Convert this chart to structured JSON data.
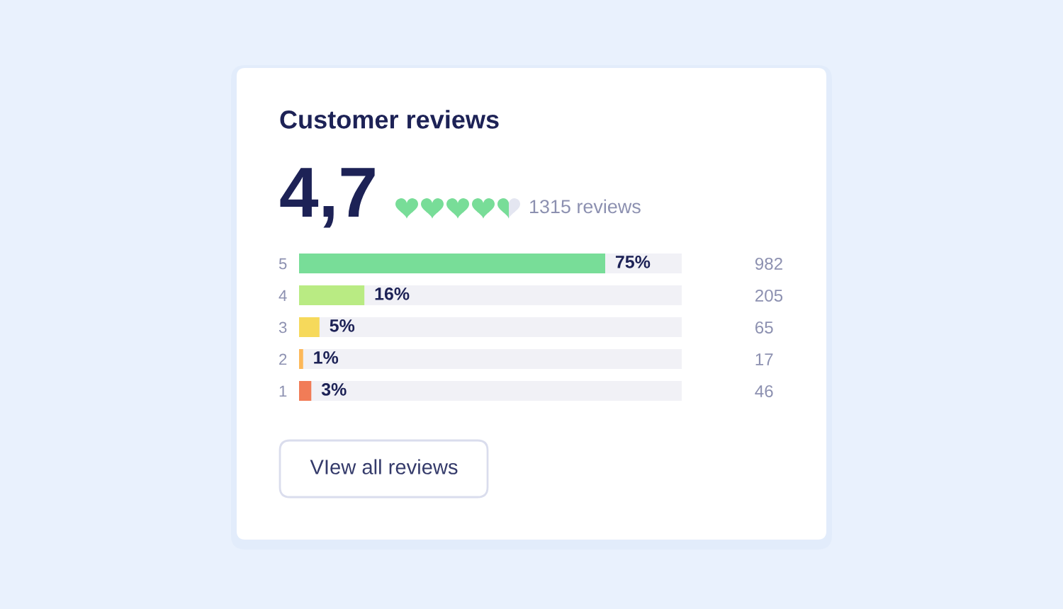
{
  "chart_data": {
    "type": "bar",
    "orientation": "horizontal",
    "title": "Customer reviews",
    "categories": [
      "5",
      "4",
      "3",
      "2",
      "1"
    ],
    "y2_categories": [
      "982",
      "205",
      "65",
      "17",
      "46"
    ],
    "series": [
      {
        "values": [
          75,
          16,
          5,
          1,
          3
        ],
        "colors": [
          "#78dd98",
          "#b9eb83",
          "#f6d95b",
          "#fdb859",
          "#f17c57"
        ],
        "value_labels": [
          "75%",
          "16%",
          "5%",
          "1%",
          "3%"
        ]
      }
    ],
    "tick_labels": "y",
    "annotations": [
      "4,7",
      "1315 reviews",
      "VIew all reviews"
    ]
  }
}
